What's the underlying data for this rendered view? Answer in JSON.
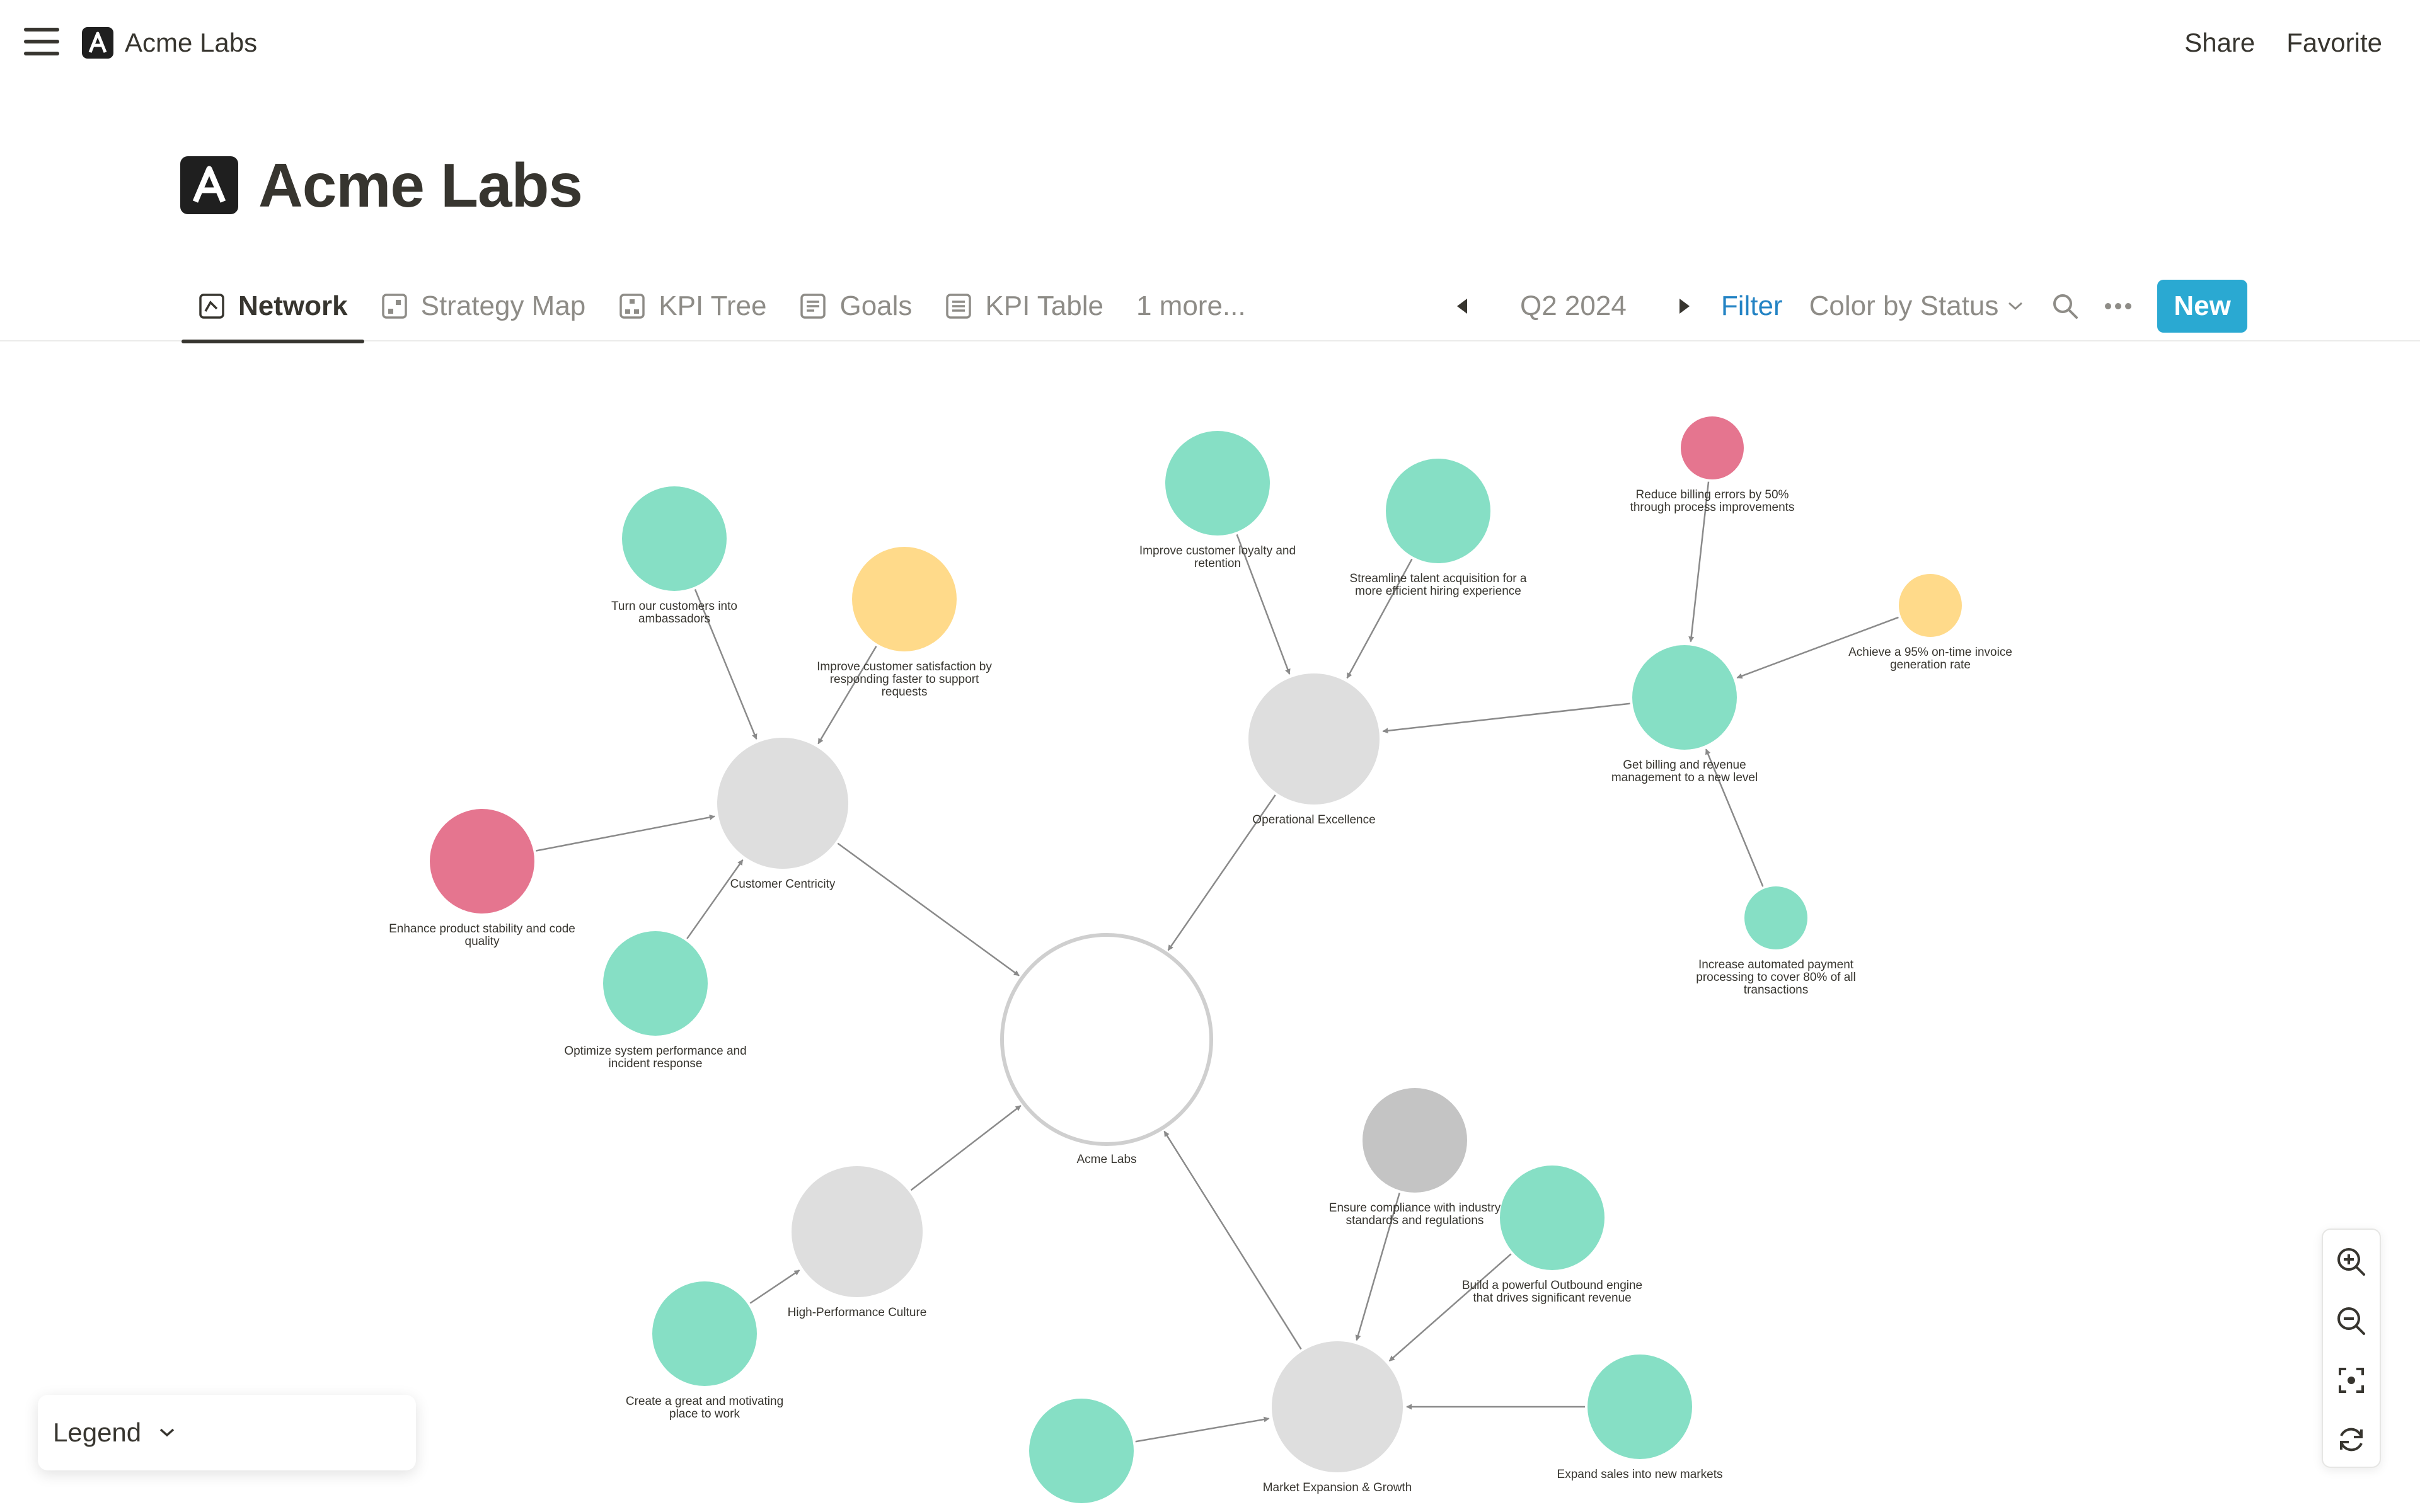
{
  "workspace": {
    "name": "Acme Labs",
    "logo_letter": "A",
    "icon": "acme-logo-icon"
  },
  "top_actions": {
    "share": "Share",
    "favorite": "Favorite"
  },
  "page": {
    "title": "Acme Labs"
  },
  "tabs": [
    {
      "label": "Network",
      "icon": "network-view-icon",
      "active": true
    },
    {
      "label": "Strategy Map",
      "icon": "map-view-icon"
    },
    {
      "label": "KPI Tree",
      "icon": "tree-view-icon"
    },
    {
      "label": "Goals",
      "icon": "list-view-icon"
    },
    {
      "label": "KPI Table",
      "icon": "table-view-icon"
    }
  ],
  "more_tabs": "1 more...",
  "controls": {
    "period": "Q2 2024",
    "filter": "Filter",
    "color_by": "Color by Status",
    "new_label": "New"
  },
  "colors": {
    "on_track": "#86dfc5",
    "at_risk": "#ffda8a",
    "off_track": "#e5758f",
    "neutral": "#dedede",
    "inactive": "#c4c4c4",
    "accent": "#2aa9d2",
    "link": "#2383c4"
  },
  "network": {
    "nodes": [
      {
        "id": "root",
        "label": [
          "Acme Labs"
        ],
        "color": "root"
      },
      {
        "id": "cc",
        "label": [
          "Customer Centricity"
        ],
        "color": "neutral"
      },
      {
        "id": "oe",
        "label": [
          "Operational Excellence"
        ],
        "color": "neutral"
      },
      {
        "id": "hpc",
        "label": [
          "High-Performance Culture"
        ],
        "color": "neutral"
      },
      {
        "id": "meg",
        "label": [
          "Market Expansion & Growth"
        ],
        "color": "neutral"
      },
      {
        "id": "n1",
        "label": [
          "Turn our customers into",
          "ambassadors"
        ],
        "color": "on_track"
      },
      {
        "id": "n2",
        "label": [
          "Improve customer satisfaction by",
          "responding faster to support",
          "requests"
        ],
        "color": "at_risk"
      },
      {
        "id": "n3",
        "label": [
          "Enhance product stability and code",
          "quality"
        ],
        "color": "off_track"
      },
      {
        "id": "n4",
        "label": [
          "Optimize system performance and",
          "incident response"
        ],
        "color": "on_track"
      },
      {
        "id": "n5",
        "label": [
          "Improve customer loyalty and",
          "retention"
        ],
        "color": "on_track"
      },
      {
        "id": "n6",
        "label": [
          "Streamline talent acquisition for a",
          "more efficient hiring experience"
        ],
        "color": "on_track"
      },
      {
        "id": "n7",
        "label": [
          "Get billing and revenue",
          "management to a new level"
        ],
        "color": "on_track"
      },
      {
        "id": "n8",
        "label": [
          "Reduce billing errors by 50%",
          "through process improvements"
        ],
        "color": "off_track"
      },
      {
        "id": "n9",
        "label": [
          "Achieve a 95% on-time invoice",
          "generation rate"
        ],
        "color": "at_risk"
      },
      {
        "id": "n10",
        "label": [
          "Increase automated payment",
          "processing to cover 80% of all",
          "transactions"
        ],
        "color": "on_track"
      },
      {
        "id": "n11",
        "label": [
          "Create a great and motivating",
          "place to work"
        ],
        "color": "on_track"
      },
      {
        "id": "n12",
        "label": [
          "Ensure compliance with industry",
          "standards and regulations"
        ],
        "color": "inactive"
      },
      {
        "id": "n13",
        "label": [
          "Build a powerful Outbound engine",
          "that drives significant revenue"
        ],
        "color": "on_track"
      },
      {
        "id": "n14",
        "label": [
          "Expand sales into new markets"
        ],
        "color": "on_track"
      },
      {
        "id": "n15",
        "label": [],
        "color": "on_track"
      }
    ],
    "links": [
      [
        "cc",
        "root"
      ],
      [
        "oe",
        "root"
      ],
      [
        "hpc",
        "root"
      ],
      [
        "meg",
        "root"
      ],
      [
        "n1",
        "cc"
      ],
      [
        "n2",
        "cc"
      ],
      [
        "n3",
        "cc"
      ],
      [
        "n4",
        "cc"
      ],
      [
        "n5",
        "oe"
      ],
      [
        "n6",
        "oe"
      ],
      [
        "n7",
        "oe"
      ],
      [
        "n8",
        "n7"
      ],
      [
        "n9",
        "n7"
      ],
      [
        "n10",
        "n7"
      ],
      [
        "n11",
        "hpc"
      ],
      [
        "n12",
        "meg"
      ],
      [
        "n13",
        "meg"
      ],
      [
        "n14",
        "meg"
      ],
      [
        "n15",
        "meg"
      ]
    ]
  },
  "zoom_controls": [
    "zoom-in-icon",
    "zoom-out-icon",
    "fit-view-icon",
    "reset-icon"
  ],
  "legend": {
    "label": "Legend"
  }
}
